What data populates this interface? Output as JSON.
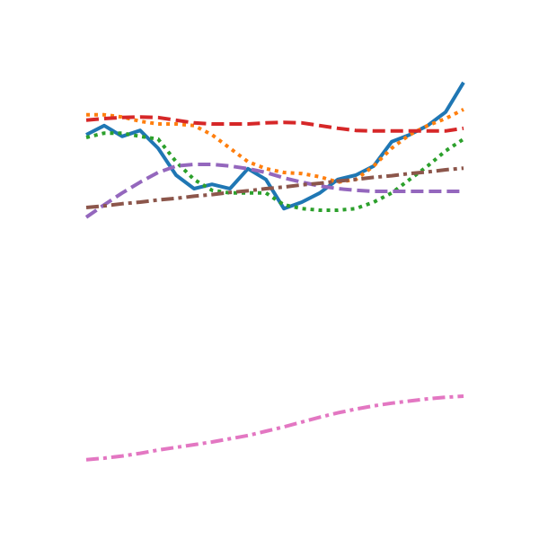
{
  "chart_data": {
    "type": "line",
    "x": [
      0,
      1,
      2,
      3,
      4,
      5,
      6,
      7,
      8,
      9,
      10,
      11,
      12,
      13,
      14,
      15,
      16,
      17,
      18,
      19,
      20,
      21
    ],
    "xlim": [
      0,
      21
    ],
    "ylim": [
      0,
      100
    ],
    "series": [
      {
        "color": "#1f77b4",
        "linestyle": "solid",
        "values": [
          75,
          76.7,
          74.7,
          75.8,
          72.5,
          67.5,
          65,
          65.8,
          65,
          68.7,
          66.7,
          61.3,
          62.5,
          64.2,
          66.7,
          67.5,
          69.2,
          73.7,
          75,
          76.7,
          79.2,
          84.7
        ]
      },
      {
        "color": "#ff7f0e",
        "linestyle": "dotted",
        "values": [
          78.7,
          78.7,
          78.3,
          77.5,
          77,
          77,
          76.7,
          75,
          72.5,
          70,
          68.7,
          68,
          67.8,
          67.2,
          66.2,
          66.7,
          69.2,
          72.5,
          75,
          76.7,
          78,
          79.7
        ]
      },
      {
        "color": "#2ca02c",
        "linestyle": "dotted",
        "values": [
          74.5,
          75.3,
          75.3,
          74.7,
          74.2,
          70,
          66.7,
          64.7,
          64.2,
          64.2,
          64.2,
          62,
          61.3,
          61,
          61,
          61.3,
          62.5,
          64.2,
          66.7,
          69.2,
          72,
          74.2
        ]
      },
      {
        "color": "#d62728",
        "linestyle": "dashed",
        "values": [
          77.7,
          78,
          78.2,
          78.3,
          78.2,
          77.7,
          77.2,
          77,
          77,
          77,
          77.2,
          77.3,
          77.2,
          76.7,
          76.2,
          75.8,
          75.7,
          75.7,
          75.7,
          75.7,
          75.7,
          76.2
        ]
      },
      {
        "color": "#9467bd",
        "linestyle": "dashed",
        "values": [
          59.7,
          62,
          64.2,
          66.2,
          68,
          69.2,
          69.5,
          69.5,
          69.2,
          68.7,
          68,
          67,
          66.2,
          65.5,
          65,
          64.7,
          64.5,
          64.5,
          64.5,
          64.5,
          64.5,
          64.5
        ]
      },
      {
        "color": "#8c564b",
        "linestyle": "dashdot",
        "values": [
          61.5,
          61.8,
          62.2,
          62.5,
          62.9,
          63.2,
          63.6,
          63.9,
          64.3,
          64.6,
          65,
          65.3,
          65.7,
          66,
          66.4,
          66.7,
          67.1,
          67.4,
          67.8,
          68.1,
          68.5,
          68.8
        ]
      },
      {
        "color": "#e377c2",
        "linestyle": "dashdot",
        "values": [
          14.7,
          15,
          15.4,
          15.9,
          16.5,
          17,
          17.5,
          18,
          18.6,
          19.2,
          20,
          20.8,
          21.7,
          22.6,
          23.4,
          24.1,
          24.7,
          25.2,
          25.6,
          26,
          26.3,
          26.5
        ]
      }
    ]
  }
}
